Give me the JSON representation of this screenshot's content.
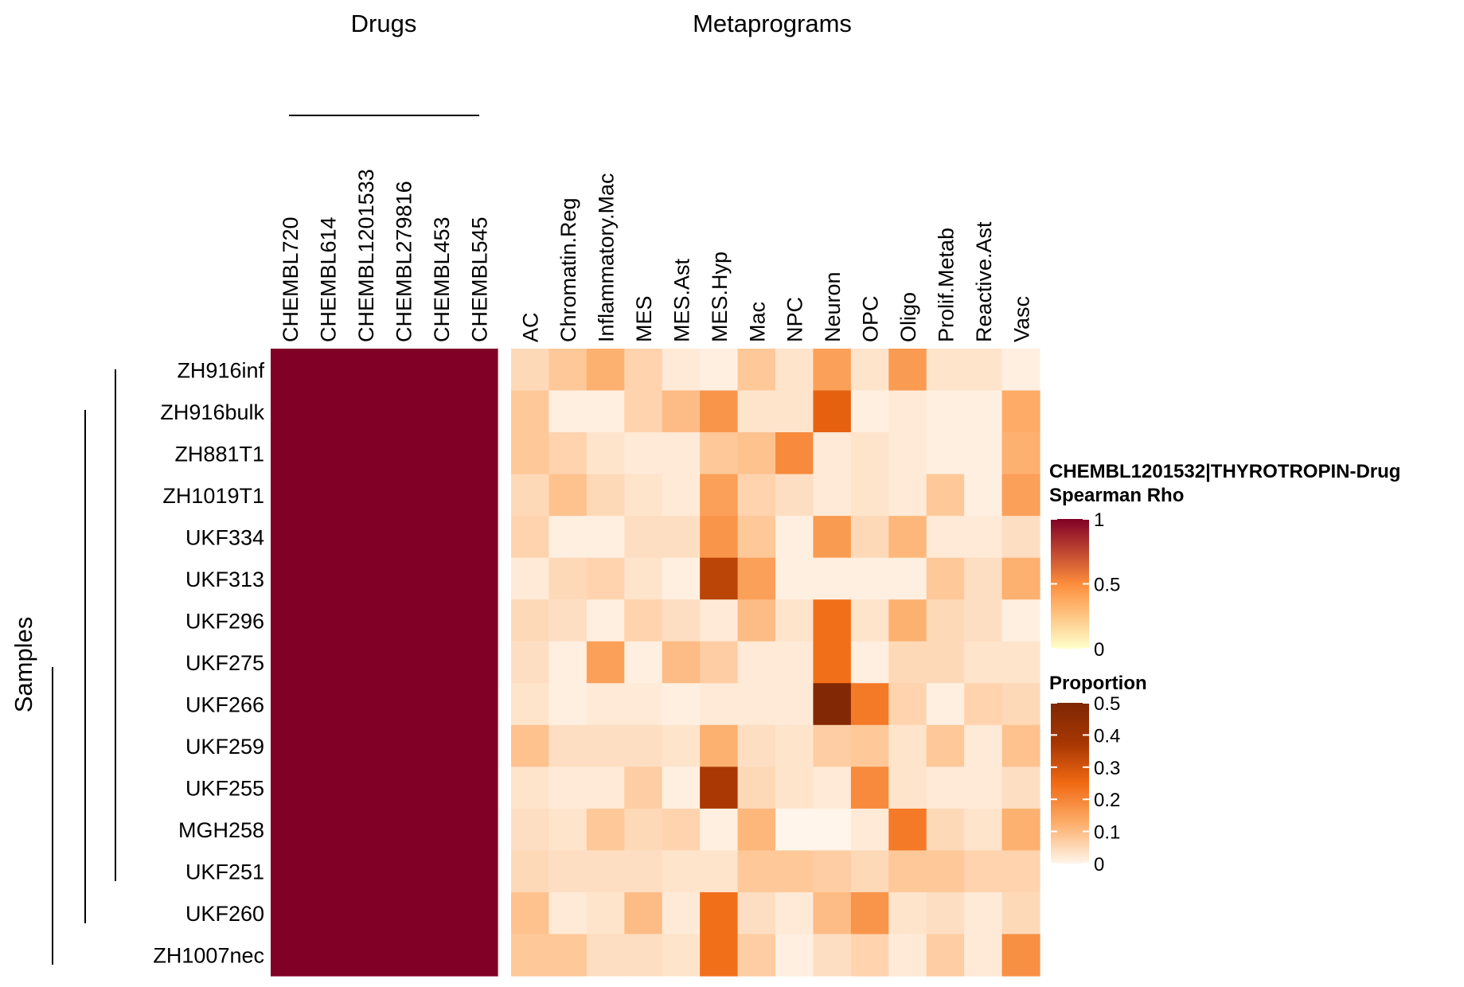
{
  "chart_data": {
    "type": "heatmap",
    "drug_block_title": "Drugs",
    "metaprogram_block_title": "Metaprograms",
    "row_axis_title": "Samples",
    "rows": [
      "ZH916inf",
      "ZH916bulk",
      "ZH881T1",
      "ZH1019T1",
      "UKF334",
      "UKF313",
      "UKF296",
      "UKF275",
      "UKF266",
      "UKF259",
      "UKF255",
      "MGH258",
      "UKF251",
      "UKF260",
      "ZH1007nec"
    ],
    "drug_columns": [
      "CHEMBL720",
      "CHEMBL614",
      "CHEMBL1201533",
      "CHEMBL279816",
      "CHEMBL453",
      "CHEMBL545"
    ],
    "drug_values": [
      [
        1,
        1,
        1,
        1,
        1,
        1
      ],
      [
        1,
        1,
        1,
        1,
        1,
        1
      ],
      [
        1,
        1,
        1,
        1,
        1,
        1
      ],
      [
        1,
        1,
        1,
        1,
        1,
        1
      ],
      [
        1,
        1,
        1,
        1,
        1,
        1
      ],
      [
        1,
        1,
        1,
        1,
        1,
        1
      ],
      [
        1,
        1,
        1,
        1,
        1,
        1
      ],
      [
        1,
        1,
        1,
        1,
        1,
        1
      ],
      [
        1,
        1,
        1,
        1,
        1,
        1
      ],
      [
        1,
        1,
        1,
        1,
        1,
        1
      ],
      [
        1,
        1,
        1,
        1,
        1,
        1
      ],
      [
        1,
        1,
        1,
        1,
        1,
        1
      ],
      [
        1,
        1,
        1,
        1,
        1,
        1
      ],
      [
        1,
        1,
        1,
        1,
        1,
        1
      ],
      [
        1,
        1,
        1,
        1,
        1,
        1
      ]
    ],
    "metaprogram_columns": [
      "AC",
      "Chromatin.Reg",
      "Inflammatory.Mac",
      "MES",
      "MES.Ast",
      "MES.Hyp",
      "Mac",
      "NPC",
      "Neuron",
      "OPC",
      "Oligo",
      "Prolif.Metab",
      "Reactive.Ast",
      "Vasc"
    ],
    "metaprogram_values": [
      [
        0.05,
        0.08,
        0.12,
        0.06,
        0.02,
        0.01,
        0.08,
        0.03,
        0.15,
        0.03,
        0.16,
        0.03,
        0.03,
        0.01
      ],
      [
        0.08,
        0.01,
        0.01,
        0.06,
        0.1,
        0.17,
        0.03,
        0.03,
        0.27,
        0.01,
        0.02,
        0.01,
        0.01,
        0.13
      ],
      [
        0.08,
        0.06,
        0.03,
        0.02,
        0.02,
        0.08,
        0.09,
        0.19,
        0.02,
        0.03,
        0.02,
        0.01,
        0.01,
        0.12
      ],
      [
        0.05,
        0.09,
        0.05,
        0.03,
        0.02,
        0.15,
        0.06,
        0.04,
        0.02,
        0.03,
        0.02,
        0.08,
        0.01,
        0.15
      ],
      [
        0.06,
        0.01,
        0.01,
        0.04,
        0.04,
        0.17,
        0.08,
        0.01,
        0.16,
        0.05,
        0.11,
        0.02,
        0.02,
        0.04
      ],
      [
        0.02,
        0.05,
        0.06,
        0.03,
        0.01,
        0.34,
        0.15,
        0.01,
        0.01,
        0.01,
        0.01,
        0.08,
        0.04,
        0.12
      ],
      [
        0.05,
        0.04,
        0.01,
        0.06,
        0.04,
        0.02,
        0.1,
        0.03,
        0.24,
        0.03,
        0.12,
        0.05,
        0.04,
        0.01
      ],
      [
        0.04,
        0.01,
        0.15,
        0.01,
        0.1,
        0.07,
        0.02,
        0.02,
        0.24,
        0.01,
        0.05,
        0.05,
        0.03,
        0.03
      ],
      [
        0.03,
        0.01,
        0.02,
        0.02,
        0.01,
        0.02,
        0.02,
        0.02,
        0.49,
        0.22,
        0.06,
        0.01,
        0.06,
        0.05
      ],
      [
        0.09,
        0.04,
        0.04,
        0.04,
        0.03,
        0.12,
        0.04,
        0.03,
        0.07,
        0.08,
        0.03,
        0.08,
        0.02,
        0.09
      ],
      [
        0.03,
        0.02,
        0.02,
        0.07,
        0.01,
        0.37,
        0.05,
        0.03,
        0.02,
        0.19,
        0.03,
        0.02,
        0.02,
        0.04
      ],
      [
        0.04,
        0.03,
        0.08,
        0.05,
        0.06,
        0.01,
        0.11,
        0.0,
        0.0,
        0.02,
        0.22,
        0.05,
        0.03,
        0.12
      ],
      [
        0.05,
        0.04,
        0.04,
        0.04,
        0.03,
        0.03,
        0.08,
        0.08,
        0.07,
        0.05,
        0.08,
        0.08,
        0.06,
        0.06
      ],
      [
        0.09,
        0.02,
        0.03,
        0.1,
        0.02,
        0.24,
        0.04,
        0.02,
        0.1,
        0.17,
        0.03,
        0.04,
        0.02,
        0.05
      ],
      [
        0.08,
        0.08,
        0.04,
        0.04,
        0.03,
        0.24,
        0.07,
        0.01,
        0.04,
        0.06,
        0.02,
        0.07,
        0.02,
        0.18
      ]
    ],
    "legend_rho": {
      "title_line1": "CHEMBL1201532|THYROTROPIN-Drug",
      "title_line2": "Spearman Rho",
      "ticks": [
        "1",
        "0.5",
        "0"
      ],
      "range": [
        0,
        1
      ],
      "colors": [
        "#ffffcc",
        "#fd8d3c",
        "#800026"
      ]
    },
    "legend_proportion": {
      "title": "Proportion",
      "ticks": [
        "0.5",
        "0.4",
        "0.3",
        "0.2",
        "0.1",
        "0"
      ],
      "range": [
        0,
        0.5
      ],
      "colors": [
        "#fff5eb",
        "#fdae6b",
        "#f16913",
        "#a63603",
        "#7f2704"
      ]
    }
  }
}
